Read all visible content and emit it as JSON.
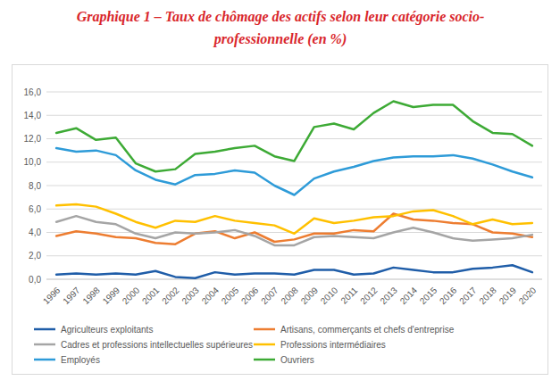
{
  "chart_data": {
    "type": "line",
    "title": "Graphique 1 – Taux de chômage des actifs selon leur catégorie socio-professionnelle (en %)",
    "categories": [
      "1996",
      "1997",
      "1998",
      "1999",
      "2000",
      "2001",
      "2002",
      "2003",
      "2004",
      "2005",
      "2006",
      "2007",
      "2008",
      "2009",
      "2010",
      "2011",
      "2012",
      "2013",
      "2014",
      "2015",
      "2016",
      "2017",
      "2018",
      "2019",
      "2020"
    ],
    "series": [
      {
        "name": "Agriculteurs exploitants",
        "color": "#1f5da8",
        "values": [
          0.4,
          0.5,
          0.4,
          0.5,
          0.4,
          0.7,
          0.2,
          0.1,
          0.6,
          0.4,
          0.5,
          0.5,
          0.4,
          0.8,
          0.8,
          0.4,
          0.5,
          1.0,
          0.8,
          0.6,
          0.6,
          0.9,
          1.0,
          1.2,
          0.6
        ]
      },
      {
        "name": "Artisans, commerçants et chefs d'entreprise",
        "color": "#ed7d31",
        "values": [
          3.7,
          4.1,
          3.9,
          3.6,
          3.5,
          3.1,
          3.0,
          3.9,
          4.1,
          3.5,
          4.0,
          3.2,
          3.4,
          3.9,
          3.9,
          4.2,
          4.1,
          5.6,
          5.1,
          5.0,
          4.8,
          4.7,
          4.0,
          3.9,
          3.6
        ]
      },
      {
        "name": "Cadres et professions intellectuelles supérieures",
        "color": "#a5a5a5",
        "values": [
          4.9,
          5.4,
          4.9,
          4.7,
          3.9,
          3.5,
          4.0,
          3.9,
          4.0,
          4.2,
          3.7,
          2.9,
          2.9,
          3.6,
          3.7,
          3.6,
          3.5,
          4.0,
          4.4,
          4.0,
          3.5,
          3.3,
          3.4,
          3.5,
          3.8
        ]
      },
      {
        "name": "Professions intermédiaires",
        "color": "#ffc000",
        "values": [
          6.3,
          6.4,
          6.2,
          5.6,
          4.9,
          4.4,
          5.0,
          4.9,
          5.4,
          5.0,
          4.8,
          4.6,
          3.9,
          5.2,
          4.8,
          5.0,
          5.3,
          5.4,
          5.8,
          5.9,
          5.4,
          4.7,
          5.1,
          4.7,
          4.8
        ]
      },
      {
        "name": "Employés",
        "color": "#2e9bd8",
        "values": [
          11.2,
          10.9,
          11.0,
          10.6,
          9.3,
          8.5,
          8.1,
          8.9,
          9.0,
          9.3,
          9.1,
          8.0,
          7.2,
          8.6,
          9.2,
          9.6,
          10.1,
          10.4,
          10.5,
          10.5,
          10.6,
          10.3,
          9.8,
          9.2,
          8.7
        ]
      },
      {
        "name": "Ouvriers",
        "color": "#3daa35",
        "values": [
          12.5,
          12.9,
          11.9,
          12.1,
          9.9,
          9.2,
          9.4,
          10.7,
          10.9,
          11.2,
          11.4,
          10.5,
          10.1,
          13.0,
          13.3,
          12.8,
          14.2,
          15.2,
          14.7,
          14.9,
          14.9,
          13.5,
          12.5,
          12.4,
          11.4
        ]
      }
    ],
    "ylim": [
      0,
      16
    ],
    "yticks": [
      {
        "value": 0,
        "label": "0,0"
      },
      {
        "value": 2,
        "label": "2,0"
      },
      {
        "value": 4,
        "label": "4,0"
      },
      {
        "value": 6,
        "label": "6,0"
      },
      {
        "value": 8,
        "label": "8,0"
      },
      {
        "value": 10,
        "label": "10,0"
      },
      {
        "value": 12,
        "label": "12,0"
      },
      {
        "value": 14,
        "label": "14,0"
      },
      {
        "value": 16,
        "label": "16,0"
      }
    ],
    "grid": true,
    "legend": "bottom"
  }
}
